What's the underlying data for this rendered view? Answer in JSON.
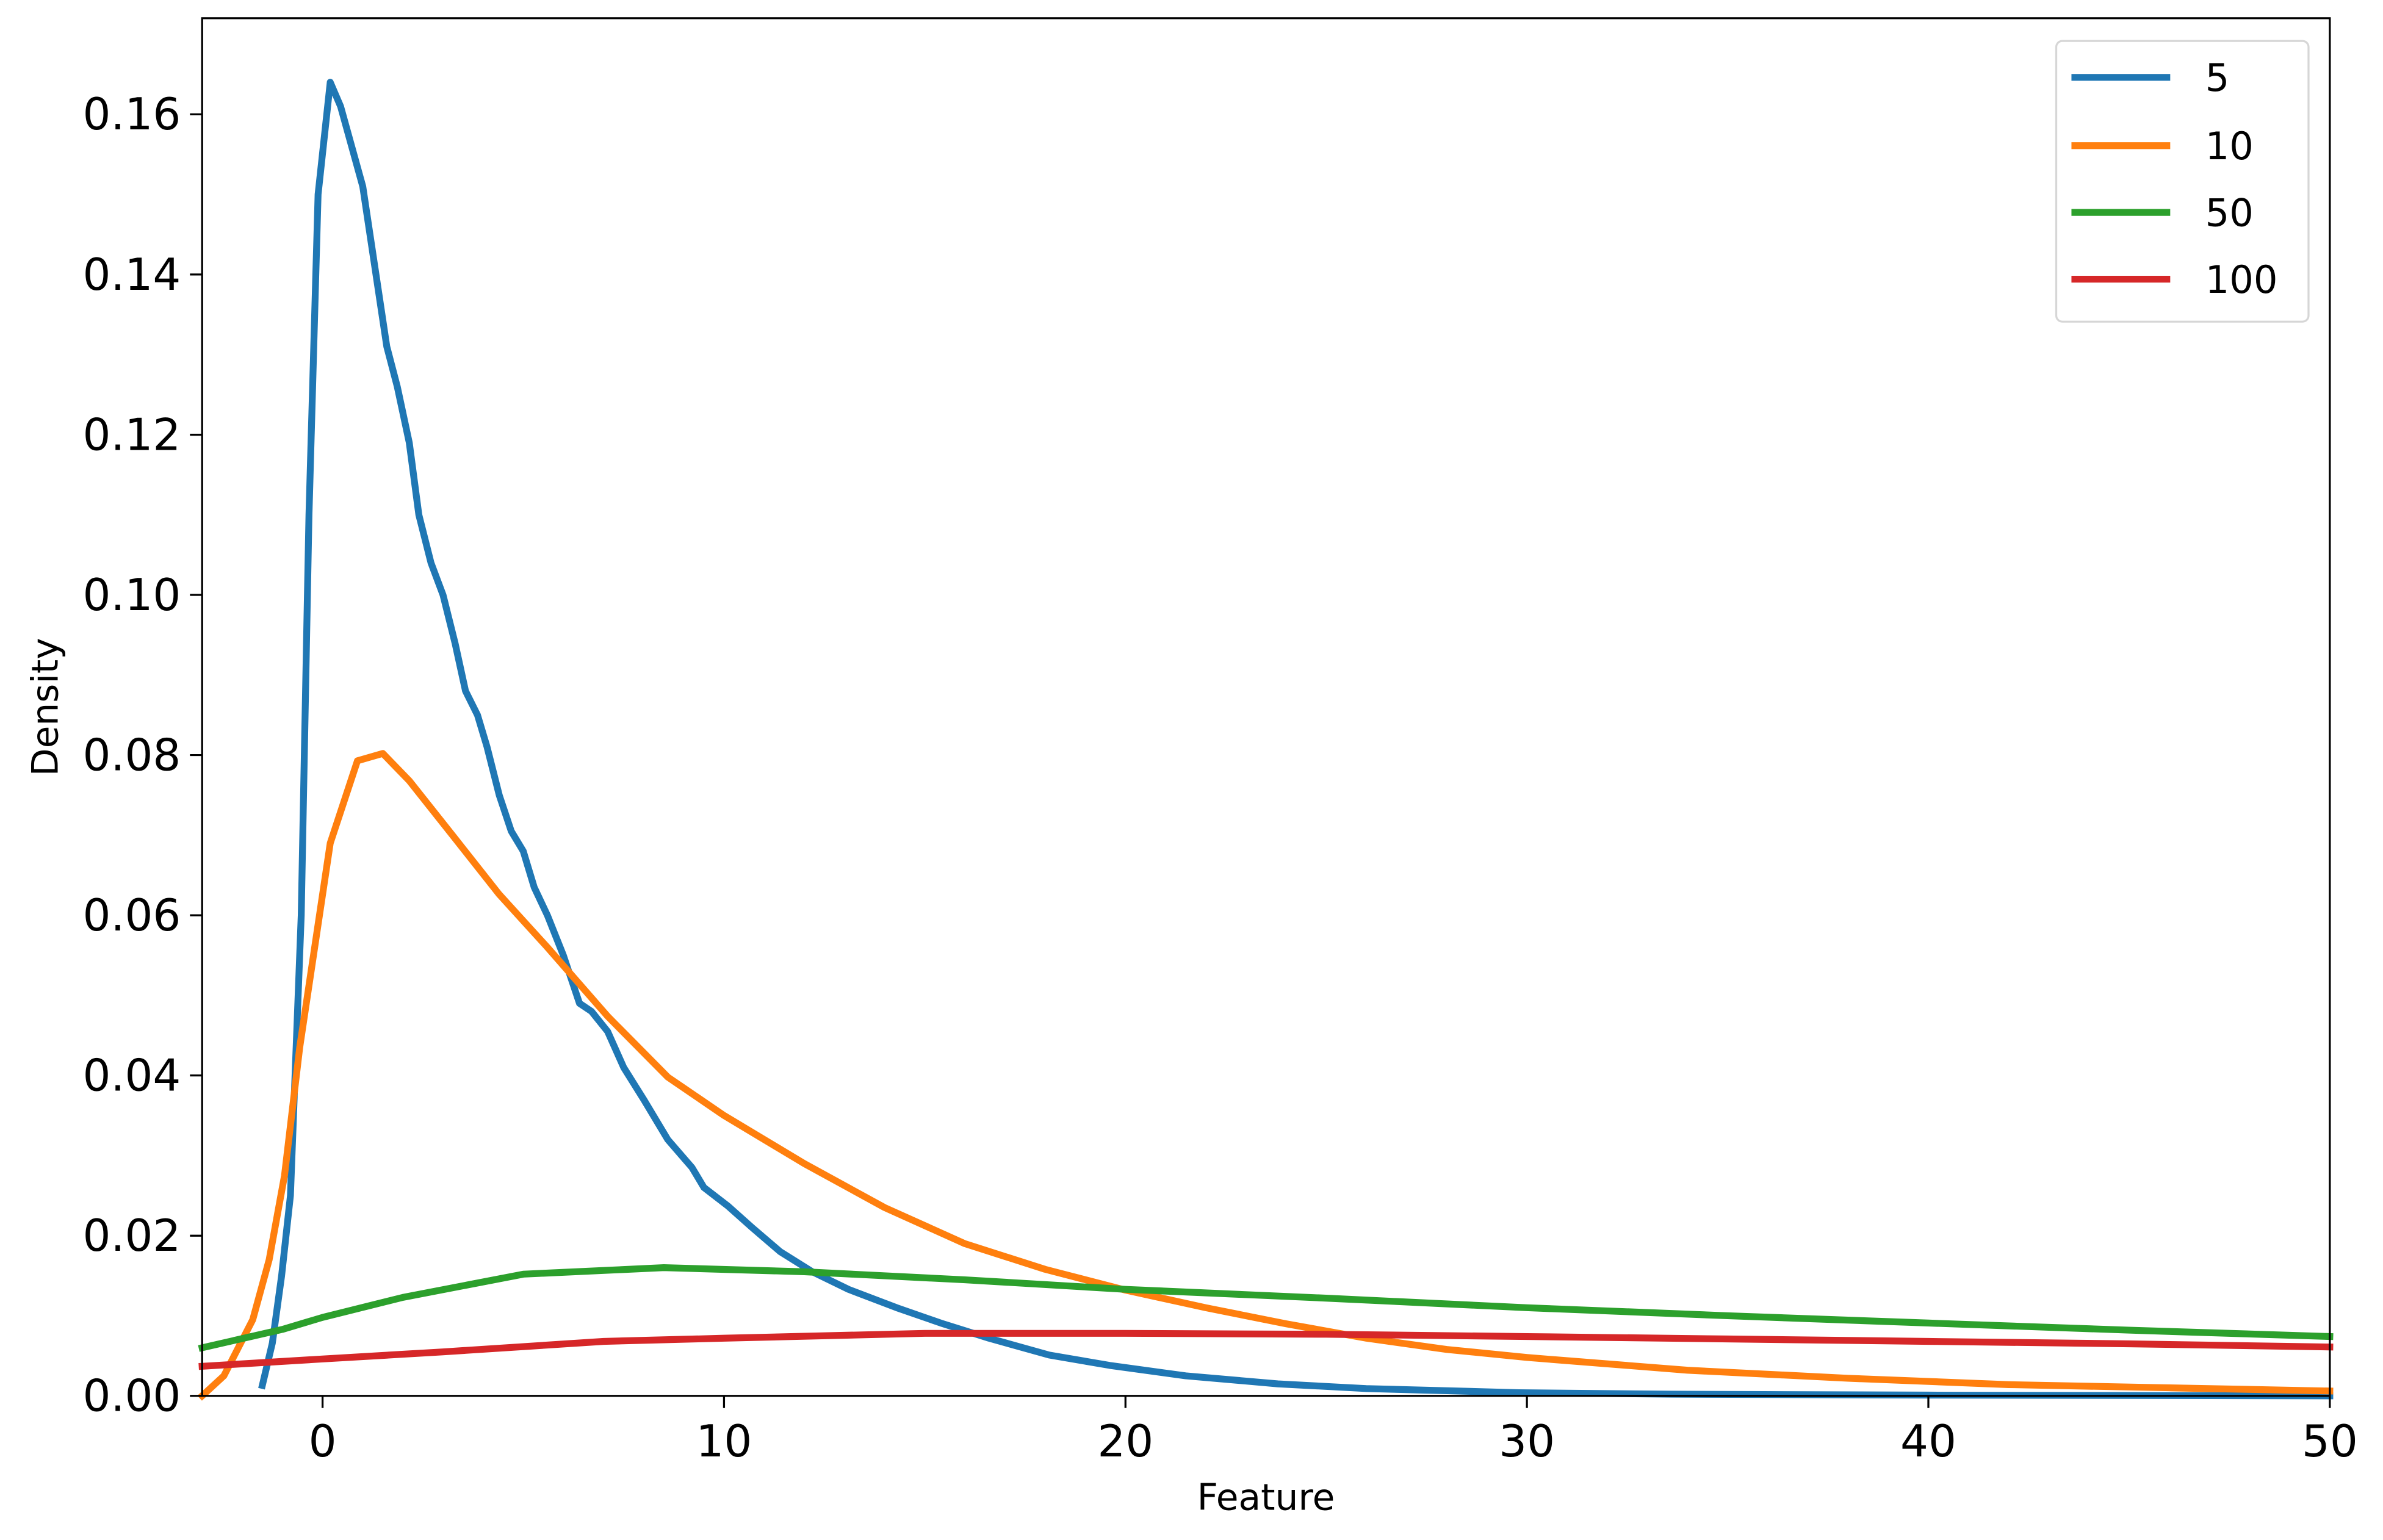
{
  "chart_data": {
    "type": "line",
    "title": "",
    "xlabel": "Feature",
    "ylabel": "Density",
    "xlim": [
      -3,
      50
    ],
    "ylim": [
      0,
      0.172
    ],
    "grid": false,
    "legend_position": "upper right",
    "xticks": [
      0,
      10,
      20,
      30,
      40,
      50
    ],
    "xtick_labels": [
      "0",
      "10",
      "20",
      "30",
      "40",
      "50"
    ],
    "yticks": [
      0.0,
      0.02,
      0.04,
      0.06,
      0.08,
      0.1,
      0.12,
      0.14,
      0.16
    ],
    "ytick_labels": [
      "0.00",
      "0.02",
      "0.04",
      "0.06",
      "0.08",
      "0.10",
      "0.12",
      "0.14",
      "0.16"
    ],
    "series": [
      {
        "name": "5",
        "color": "#1f77b4",
        "x": [
          -1.5,
          -1.25,
          -1.02,
          -0.8,
          -0.53,
          -0.34,
          -0.11,
          0.19,
          0.45,
          1.0,
          1.6,
          1.86,
          2.16,
          2.4,
          2.7,
          3.0,
          3.3,
          3.56,
          3.86,
          4.1,
          4.4,
          4.7,
          5.0,
          5.27,
          5.6,
          6.0,
          6.4,
          6.7,
          7.1,
          7.5,
          8.0,
          8.6,
          9.2,
          9.5,
          10.1,
          10.7,
          11.4,
          12.2,
          13.1,
          14.3,
          15.4,
          16.6,
          18.1,
          19.6,
          21.5,
          23.8,
          26.0,
          29.8,
          33.6,
          40.0,
          50.0
        ],
        "y": [
          0.0013,
          0.0066,
          0.015,
          0.025,
          0.06,
          0.11,
          0.15,
          0.164,
          0.161,
          0.151,
          0.131,
          0.126,
          0.119,
          0.11,
          0.104,
          0.1,
          0.094,
          0.088,
          0.085,
          0.081,
          0.075,
          0.0705,
          0.068,
          0.0635,
          0.06,
          0.055,
          0.049,
          0.048,
          0.0455,
          0.041,
          0.037,
          0.032,
          0.0285,
          0.026,
          0.0237,
          0.021,
          0.018,
          0.0155,
          0.0133,
          0.011,
          0.0091,
          0.0072,
          0.0051,
          0.0038,
          0.0025,
          0.0015,
          0.0009,
          0.0004,
          0.0002,
          0.0001,
          0.0
        ]
      },
      {
        "name": "10",
        "color": "#ff7f0e",
        "x": [
          -3.0,
          -2.46,
          -1.74,
          -1.33,
          -0.95,
          -0.57,
          0.19,
          0.87,
          1.5,
          2.16,
          3.3,
          4.4,
          5.6,
          7.1,
          8.6,
          10.0,
          12.0,
          14.0,
          16.0,
          18.0,
          20.0,
          22.0,
          24.0,
          26.0,
          28.0,
          30.0,
          34.0,
          38.0,
          42.0,
          46.0,
          50.0
        ],
        "y": [
          0.0,
          0.0025,
          0.0095,
          0.017,
          0.0275,
          0.0435,
          0.069,
          0.0793,
          0.0802,
          0.0768,
          0.0696,
          0.0626,
          0.056,
          0.0474,
          0.0398,
          0.035,
          0.029,
          0.0235,
          0.019,
          0.0158,
          0.0132,
          0.011,
          0.009,
          0.0072,
          0.0058,
          0.0048,
          0.0032,
          0.0022,
          0.0014,
          0.001,
          0.0006
        ]
      },
      {
        "name": "50",
        "color": "#2ca02c",
        "x": [
          -3.0,
          -1.0,
          0.0,
          2.0,
          5.0,
          8.5,
          12.0,
          16.0,
          20.0,
          25.0,
          30.0,
          35.0,
          40.0,
          45.0,
          50.0
        ],
        "y": [
          0.006,
          0.0083,
          0.0098,
          0.0123,
          0.0152,
          0.016,
          0.0155,
          0.0145,
          0.0133,
          0.0122,
          0.011,
          0.01,
          0.0091,
          0.0082,
          0.0074
        ]
      },
      {
        "name": "100",
        "color": "#d62728",
        "x": [
          -3.0,
          0.0,
          3.0,
          7.0,
          10.0,
          15.0,
          20.0,
          25.0,
          30.0,
          35.0,
          40.0,
          45.0,
          50.0
        ],
        "y": [
          0.0037,
          0.0046,
          0.0055,
          0.0068,
          0.0072,
          0.0078,
          0.0078,
          0.0077,
          0.0074,
          0.0071,
          0.0068,
          0.0065,
          0.0061
        ]
      }
    ]
  },
  "legend": {
    "items": [
      {
        "label": "5",
        "color": "#1f77b4"
      },
      {
        "label": "10",
        "color": "#ff7f0e"
      },
      {
        "label": "50",
        "color": "#2ca02c"
      },
      {
        "label": "100",
        "color": "#d62728"
      }
    ]
  }
}
